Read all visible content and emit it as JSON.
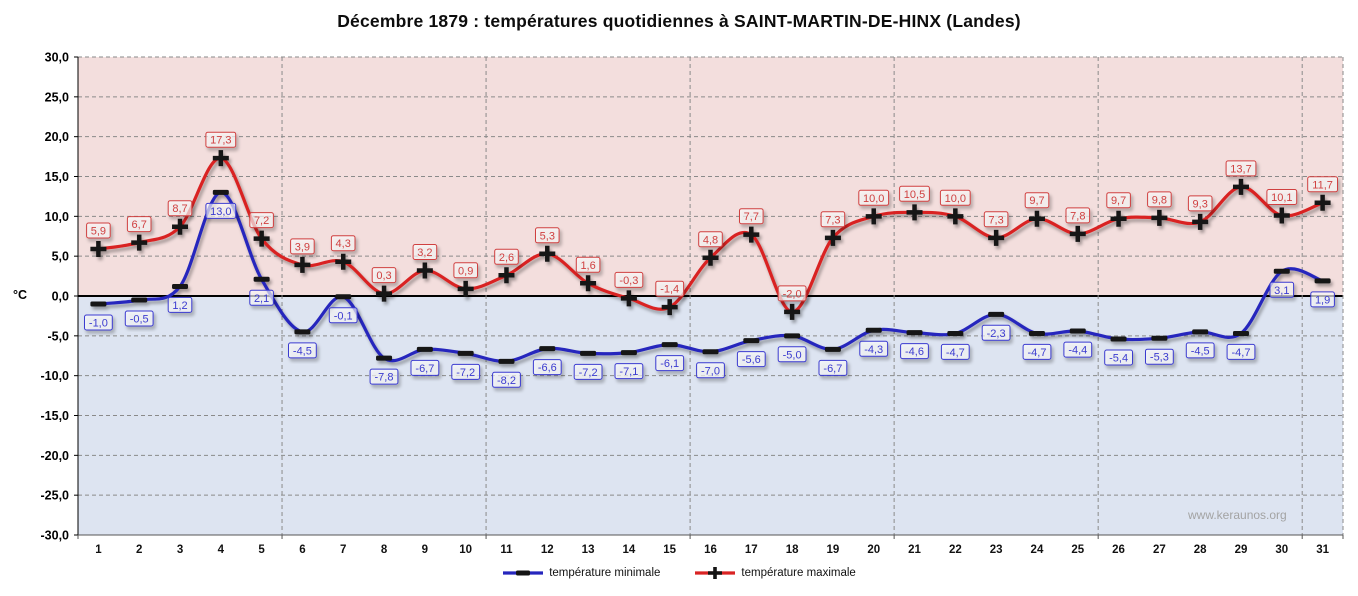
{
  "title": "Décembre 1879 : températures quotidiennes à SAINT-MARTIN-DE-HINX (Landes)",
  "watermark": "www.keraunos.org",
  "y_axis_unit": "°C",
  "chart_data": {
    "type": "line",
    "title": "Décembre 1879 : températures quotidiennes à SAINT-MARTIN-DE-HINX (Landes)",
    "categories": [
      1,
      2,
      3,
      4,
      5,
      6,
      7,
      8,
      9,
      10,
      11,
      12,
      13,
      14,
      15,
      16,
      17,
      18,
      19,
      20,
      21,
      22,
      23,
      24,
      25,
      26,
      27,
      28,
      29,
      30,
      31
    ],
    "xlabel": "",
    "ylabel": "°C",
    "ylim": [
      -30,
      30
    ],
    "ytick_step": 5,
    "grid": true,
    "legend_position": "bottom",
    "zero_line_color": "#000000",
    "gridline_color": "#8a8a8a",
    "background_above_zero": "#f3dedd",
    "background_below_zero": "#dde4f1",
    "marker_color": "#141414",
    "series": [
      {
        "name": "température minimale",
        "color": "#2626bd",
        "label_color": "#3b3bd0",
        "marker": "dash",
        "label_side": "below",
        "values": [
          -1.0,
          -0.5,
          1.2,
          13.0,
          2.1,
          -4.5,
          -0.1,
          -7.8,
          -6.7,
          -7.2,
          -8.2,
          -6.6,
          -7.2,
          -7.1,
          -6.1,
          -7.0,
          -5.6,
          -5.0,
          -6.7,
          -4.3,
          -4.6,
          -4.7,
          -2.3,
          -4.7,
          -4.4,
          -5.4,
          -5.3,
          -4.5,
          -4.7,
          3.1,
          1.9
        ]
      },
      {
        "name": "température maximale",
        "color": "#d92323",
        "label_color": "#d04040",
        "marker": "plus",
        "label_side": "above",
        "values": [
          5.9,
          6.7,
          8.7,
          17.3,
          7.2,
          3.9,
          4.3,
          0.3,
          3.2,
          0.9,
          2.6,
          5.3,
          1.6,
          -0.3,
          -1.4,
          4.8,
          7.7,
          -2.0,
          7.3,
          10.0,
          10.5,
          10.0,
          7.3,
          9.7,
          7.8,
          9.7,
          9.8,
          9.3,
          13.7,
          10.1,
          11.7
        ]
      }
    ]
  }
}
